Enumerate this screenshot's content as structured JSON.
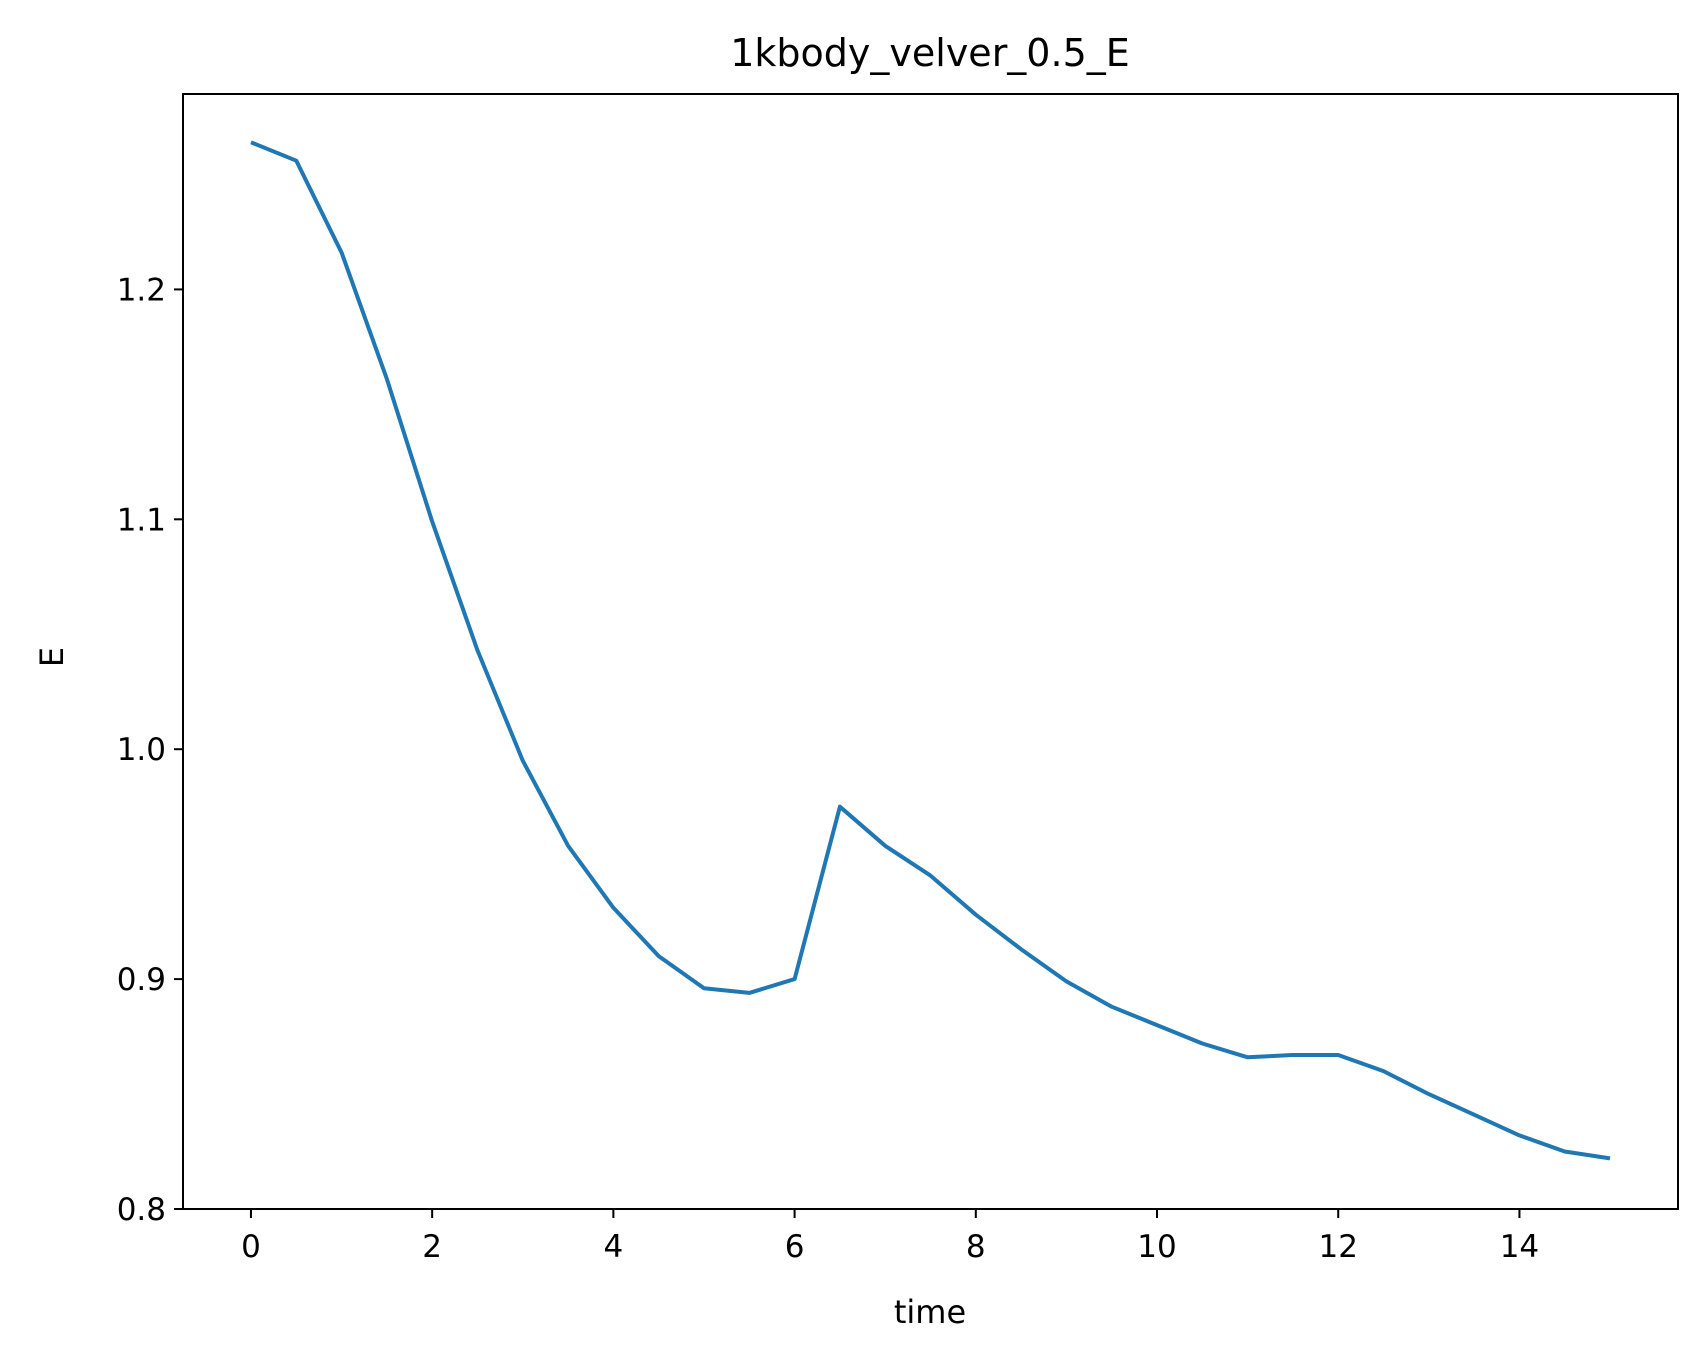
{
  "chart_data": {
    "type": "line",
    "title": "1kbody_velver_0.5_E",
    "xlabel": "time",
    "ylabel": "E",
    "xlim": [
      -0.75,
      15.75
    ],
    "ylim": [
      0.8,
      1.285
    ],
    "xticks": [
      0,
      2,
      4,
      6,
      8,
      10,
      12,
      14
    ],
    "xtick_labels": [
      "0",
      "2",
      "4",
      "6",
      "8",
      "10",
      "12",
      "14"
    ],
    "yticks": [
      0.8,
      0.9,
      1.0,
      1.1,
      1.2
    ],
    "ytick_labels": [
      "0.8",
      "0.9",
      "1.0",
      "1.1",
      "1.2"
    ],
    "grid": false,
    "series": [
      {
        "color": "#1f77b4",
        "x": [
          0,
          0.5,
          1,
          1.5,
          2,
          2.5,
          3,
          3.5,
          4,
          4.5,
          5,
          5.5,
          6,
          6.5,
          7,
          7.5,
          8,
          8.5,
          9,
          9.5,
          10,
          10.5,
          11,
          11.5,
          12,
          12.5,
          13,
          13.5,
          14,
          14.5,
          15
        ],
        "values": [
          1.264,
          1.256,
          1.216,
          1.161,
          1.099,
          1.043,
          0.995,
          0.958,
          0.931,
          0.91,
          0.896,
          0.894,
          0.9,
          0.975,
          0.958,
          0.945,
          0.928,
          0.913,
          0.899,
          0.888,
          0.88,
          0.872,
          0.866,
          0.867,
          0.867,
          0.86,
          0.85,
          0.841,
          0.832,
          0.825,
          0.822
        ]
      }
    ]
  }
}
